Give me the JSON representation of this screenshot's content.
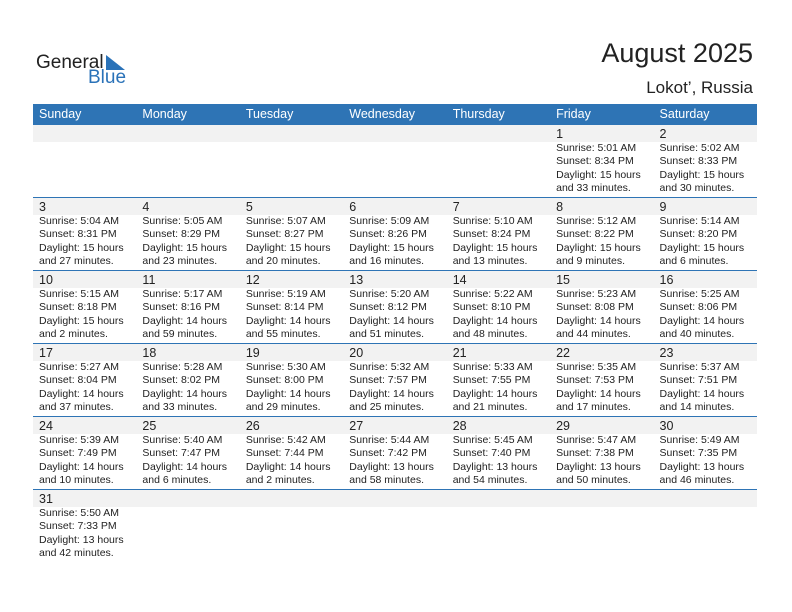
{
  "logo": {
    "text1": "General",
    "text2": "Blue"
  },
  "title": "August 2025",
  "location": "Lokot’, Russia",
  "weekdays": [
    "Sunday",
    "Monday",
    "Tuesday",
    "Wednesday",
    "Thursday",
    "Friday",
    "Saturday"
  ],
  "colors": {
    "header": "#2e74b5",
    "date_strip": "#f2f2f2"
  },
  "weeks": [
    [
      null,
      null,
      null,
      null,
      null,
      {
        "day": "1",
        "sunrise": "Sunrise: 5:01 AM",
        "sunset": "Sunset: 8:34 PM",
        "daylight": "Daylight: 15 hours",
        "minutes": "and 33 minutes."
      },
      {
        "day": "2",
        "sunrise": "Sunrise: 5:02 AM",
        "sunset": "Sunset: 8:33 PM",
        "daylight": "Daylight: 15 hours",
        "minutes": "and 30 minutes."
      }
    ],
    [
      {
        "day": "3",
        "sunrise": "Sunrise: 5:04 AM",
        "sunset": "Sunset: 8:31 PM",
        "daylight": "Daylight: 15 hours",
        "minutes": "and 27 minutes."
      },
      {
        "day": "4",
        "sunrise": "Sunrise: 5:05 AM",
        "sunset": "Sunset: 8:29 PM",
        "daylight": "Daylight: 15 hours",
        "minutes": "and 23 minutes."
      },
      {
        "day": "5",
        "sunrise": "Sunrise: 5:07 AM",
        "sunset": "Sunset: 8:27 PM",
        "daylight": "Daylight: 15 hours",
        "minutes": "and 20 minutes."
      },
      {
        "day": "6",
        "sunrise": "Sunrise: 5:09 AM",
        "sunset": "Sunset: 8:26 PM",
        "daylight": "Daylight: 15 hours",
        "minutes": "and 16 minutes."
      },
      {
        "day": "7",
        "sunrise": "Sunrise: 5:10 AM",
        "sunset": "Sunset: 8:24 PM",
        "daylight": "Daylight: 15 hours",
        "minutes": "and 13 minutes."
      },
      {
        "day": "8",
        "sunrise": "Sunrise: 5:12 AM",
        "sunset": "Sunset: 8:22 PM",
        "daylight": "Daylight: 15 hours",
        "minutes": "and 9 minutes."
      },
      {
        "day": "9",
        "sunrise": "Sunrise: 5:14 AM",
        "sunset": "Sunset: 8:20 PM",
        "daylight": "Daylight: 15 hours",
        "minutes": "and 6 minutes."
      }
    ],
    [
      {
        "day": "10",
        "sunrise": "Sunrise: 5:15 AM",
        "sunset": "Sunset: 8:18 PM",
        "daylight": "Daylight: 15 hours",
        "minutes": "and 2 minutes."
      },
      {
        "day": "11",
        "sunrise": "Sunrise: 5:17 AM",
        "sunset": "Sunset: 8:16 PM",
        "daylight": "Daylight: 14 hours",
        "minutes": "and 59 minutes."
      },
      {
        "day": "12",
        "sunrise": "Sunrise: 5:19 AM",
        "sunset": "Sunset: 8:14 PM",
        "daylight": "Daylight: 14 hours",
        "minutes": "and 55 minutes."
      },
      {
        "day": "13",
        "sunrise": "Sunrise: 5:20 AM",
        "sunset": "Sunset: 8:12 PM",
        "daylight": "Daylight: 14 hours",
        "minutes": "and 51 minutes."
      },
      {
        "day": "14",
        "sunrise": "Sunrise: 5:22 AM",
        "sunset": "Sunset: 8:10 PM",
        "daylight": "Daylight: 14 hours",
        "minutes": "and 48 minutes."
      },
      {
        "day": "15",
        "sunrise": "Sunrise: 5:23 AM",
        "sunset": "Sunset: 8:08 PM",
        "daylight": "Daylight: 14 hours",
        "minutes": "and 44 minutes."
      },
      {
        "day": "16",
        "sunrise": "Sunrise: 5:25 AM",
        "sunset": "Sunset: 8:06 PM",
        "daylight": "Daylight: 14 hours",
        "minutes": "and 40 minutes."
      }
    ],
    [
      {
        "day": "17",
        "sunrise": "Sunrise: 5:27 AM",
        "sunset": "Sunset: 8:04 PM",
        "daylight": "Daylight: 14 hours",
        "minutes": "and 37 minutes."
      },
      {
        "day": "18",
        "sunrise": "Sunrise: 5:28 AM",
        "sunset": "Sunset: 8:02 PM",
        "daylight": "Daylight: 14 hours",
        "minutes": "and 33 minutes."
      },
      {
        "day": "19",
        "sunrise": "Sunrise: 5:30 AM",
        "sunset": "Sunset: 8:00 PM",
        "daylight": "Daylight: 14 hours",
        "minutes": "and 29 minutes."
      },
      {
        "day": "20",
        "sunrise": "Sunrise: 5:32 AM",
        "sunset": "Sunset: 7:57 PM",
        "daylight": "Daylight: 14 hours",
        "minutes": "and 25 minutes."
      },
      {
        "day": "21",
        "sunrise": "Sunrise: 5:33 AM",
        "sunset": "Sunset: 7:55 PM",
        "daylight": "Daylight: 14 hours",
        "minutes": "and 21 minutes."
      },
      {
        "day": "22",
        "sunrise": "Sunrise: 5:35 AM",
        "sunset": "Sunset: 7:53 PM",
        "daylight": "Daylight: 14 hours",
        "minutes": "and 17 minutes."
      },
      {
        "day": "23",
        "sunrise": "Sunrise: 5:37 AM",
        "sunset": "Sunset: 7:51 PM",
        "daylight": "Daylight: 14 hours",
        "minutes": "and 14 minutes."
      }
    ],
    [
      {
        "day": "24",
        "sunrise": "Sunrise: 5:39 AM",
        "sunset": "Sunset: 7:49 PM",
        "daylight": "Daylight: 14 hours",
        "minutes": "and 10 minutes."
      },
      {
        "day": "25",
        "sunrise": "Sunrise: 5:40 AM",
        "sunset": "Sunset: 7:47 PM",
        "daylight": "Daylight: 14 hours",
        "minutes": "and 6 minutes."
      },
      {
        "day": "26",
        "sunrise": "Sunrise: 5:42 AM",
        "sunset": "Sunset: 7:44 PM",
        "daylight": "Daylight: 14 hours",
        "minutes": "and 2 minutes."
      },
      {
        "day": "27",
        "sunrise": "Sunrise: 5:44 AM",
        "sunset": "Sunset: 7:42 PM",
        "daylight": "Daylight: 13 hours",
        "minutes": "and 58 minutes."
      },
      {
        "day": "28",
        "sunrise": "Sunrise: 5:45 AM",
        "sunset": "Sunset: 7:40 PM",
        "daylight": "Daylight: 13 hours",
        "minutes": "and 54 minutes."
      },
      {
        "day": "29",
        "sunrise": "Sunrise: 5:47 AM",
        "sunset": "Sunset: 7:38 PM",
        "daylight": "Daylight: 13 hours",
        "minutes": "and 50 minutes."
      },
      {
        "day": "30",
        "sunrise": "Sunrise: 5:49 AM",
        "sunset": "Sunset: 7:35 PM",
        "daylight": "Daylight: 13 hours",
        "minutes": "and 46 minutes."
      }
    ],
    [
      {
        "day": "31",
        "sunrise": "Sunrise: 5:50 AM",
        "sunset": "Sunset: 7:33 PM",
        "daylight": "Daylight: 13 hours",
        "minutes": "and 42 minutes."
      },
      null,
      null,
      null,
      null,
      null,
      null
    ]
  ]
}
